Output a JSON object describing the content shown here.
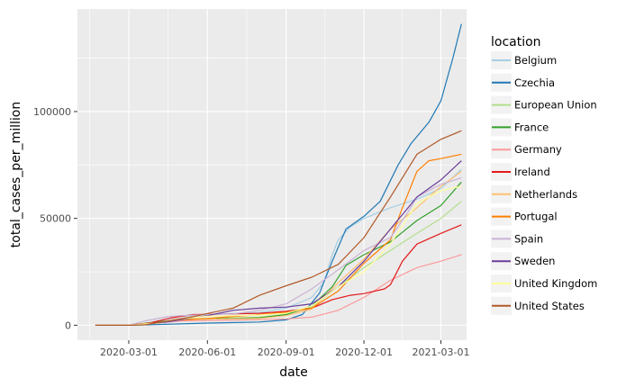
{
  "chart_data": {
    "type": "line",
    "xlabel": "date",
    "ylabel": "total_cases_per_million",
    "x_ticks": [
      "2020-03-01",
      "2020-06-01",
      "2020-09-01",
      "2020-12-01",
      "2021-03-01"
    ],
    "y_ticks": [
      0,
      50000,
      100000
    ],
    "y_tick_labels": [
      "0",
      "50000",
      "100000"
    ],
    "xlim": [
      "2020-01-01",
      "2021-03-31"
    ],
    "ylim": [
      -7000,
      148000
    ],
    "grid": true,
    "legend_title": "location",
    "legend_position": "right",
    "series": [
      {
        "name": "Belgium",
        "color": "#a6cee3",
        "points": [
          [
            "2020-01-22",
            0
          ],
          [
            "2020-03-01",
            0
          ],
          [
            "2020-03-20",
            800
          ],
          [
            "2020-04-15",
            3000
          ],
          [
            "2020-05-01",
            4200
          ],
          [
            "2020-06-01",
            5000
          ],
          [
            "2020-08-01",
            6000
          ],
          [
            "2020-09-01",
            8000
          ],
          [
            "2020-10-01",
            13000
          ],
          [
            "2020-10-15",
            20000
          ],
          [
            "2020-10-25",
            33000
          ],
          [
            "2020-11-01",
            40000
          ],
          [
            "2020-11-15",
            46000
          ],
          [
            "2020-12-01",
            50000
          ],
          [
            "2021-01-01",
            55000
          ],
          [
            "2021-02-01",
            59000
          ],
          [
            "2021-03-01",
            64000
          ],
          [
            "2021-03-25",
            73000
          ]
        ]
      },
      {
        "name": "Czechia",
        "color": "#1f78b4",
        "points": [
          [
            "2020-01-22",
            0
          ],
          [
            "2020-03-01",
            0
          ],
          [
            "2020-04-01",
            300
          ],
          [
            "2020-06-01",
            1000
          ],
          [
            "2020-08-01",
            1500
          ],
          [
            "2020-09-01",
            2500
          ],
          [
            "2020-09-20",
            5000
          ],
          [
            "2020-10-10",
            15000
          ],
          [
            "2020-10-25",
            30000
          ],
          [
            "2020-11-10",
            45000
          ],
          [
            "2020-12-01",
            51000
          ],
          [
            "2020-12-20",
            58000
          ],
          [
            "2021-01-10",
            75000
          ],
          [
            "2021-01-25",
            85000
          ],
          [
            "2021-02-15",
            95000
          ],
          [
            "2021-03-01",
            105000
          ],
          [
            "2021-03-15",
            125000
          ],
          [
            "2021-03-25",
            141000
          ]
        ]
      },
      {
        "name": "European Union",
        "color": "#b2df8a",
        "points": [
          [
            "2020-01-22",
            0
          ],
          [
            "2020-03-01",
            0
          ],
          [
            "2020-04-01",
            1000
          ],
          [
            "2020-05-01",
            2500
          ],
          [
            "2020-06-01",
            3000
          ],
          [
            "2020-08-01",
            3800
          ],
          [
            "2020-09-01",
            5000
          ],
          [
            "2020-10-01",
            8500
          ],
          [
            "2020-11-01",
            18000
          ],
          [
            "2020-12-01",
            27000
          ],
          [
            "2021-01-01",
            35000
          ],
          [
            "2021-02-01",
            43000
          ],
          [
            "2021-03-01",
            50000
          ],
          [
            "2021-03-25",
            58000
          ]
        ]
      },
      {
        "name": "France",
        "color": "#33a02c",
        "points": [
          [
            "2020-01-22",
            0
          ],
          [
            "2020-03-01",
            0
          ],
          [
            "2020-04-01",
            1500
          ],
          [
            "2020-05-01",
            2700
          ],
          [
            "2020-06-01",
            2900
          ],
          [
            "2020-08-01",
            3500
          ],
          [
            "2020-09-01",
            5000
          ],
          [
            "2020-10-01",
            9000
          ],
          [
            "2020-10-25",
            18000
          ],
          [
            "2020-11-10",
            28000
          ],
          [
            "2020-12-01",
            33000
          ],
          [
            "2021-01-01",
            39000
          ],
          [
            "2021-02-01",
            49000
          ],
          [
            "2021-03-01",
            56000
          ],
          [
            "2021-03-25",
            67000
          ]
        ]
      },
      {
        "name": "Germany",
        "color": "#fb9a99",
        "points": [
          [
            "2020-01-22",
            0
          ],
          [
            "2020-03-01",
            0
          ],
          [
            "2020-04-01",
            1000
          ],
          [
            "2020-05-01",
            2000
          ],
          [
            "2020-06-01",
            2200
          ],
          [
            "2020-08-01",
            2600
          ],
          [
            "2020-09-01",
            3000
          ],
          [
            "2020-10-01",
            3800
          ],
          [
            "2020-11-01",
            7000
          ],
          [
            "2020-12-01",
            13000
          ],
          [
            "2021-01-01",
            21000
          ],
          [
            "2021-02-01",
            27000
          ],
          [
            "2021-03-01",
            30000
          ],
          [
            "2021-03-25",
            33000
          ]
        ]
      },
      {
        "name": "Ireland",
        "color": "#e31a1c",
        "points": [
          [
            "2020-01-22",
            0
          ],
          [
            "2020-03-01",
            0
          ],
          [
            "2020-03-25",
            1000
          ],
          [
            "2020-04-20",
            3500
          ],
          [
            "2020-05-15",
            5000
          ],
          [
            "2020-06-01",
            5100
          ],
          [
            "2020-08-01",
            5600
          ],
          [
            "2020-09-01",
            6500
          ],
          [
            "2020-10-01",
            8000
          ],
          [
            "2020-10-25",
            12000
          ],
          [
            "2020-11-15",
            14000
          ],
          [
            "2020-12-01",
            14800
          ],
          [
            "2020-12-25",
            17000
          ],
          [
            "2021-01-01",
            19000
          ],
          [
            "2021-01-15",
            30000
          ],
          [
            "2021-02-01",
            38000
          ],
          [
            "2021-03-01",
            43000
          ],
          [
            "2021-03-25",
            47000
          ]
        ]
      },
      {
        "name": "Netherlands",
        "color": "#fdbf6f",
        "points": [
          [
            "2020-01-22",
            0
          ],
          [
            "2020-03-01",
            0
          ],
          [
            "2020-04-01",
            1000
          ],
          [
            "2020-05-01",
            2500
          ],
          [
            "2020-06-01",
            2800
          ],
          [
            "2020-08-01",
            3200
          ],
          [
            "2020-09-01",
            4500
          ],
          [
            "2020-10-01",
            7500
          ],
          [
            "2020-11-01",
            20000
          ],
          [
            "2020-12-01",
            31000
          ],
          [
            "2021-01-01",
            45000
          ],
          [
            "2021-02-01",
            55000
          ],
          [
            "2021-03-01",
            65000
          ],
          [
            "2021-03-25",
            72000
          ]
        ]
      },
      {
        "name": "Portugal",
        "color": "#ff7f00",
        "points": [
          [
            "2020-01-22",
            0
          ],
          [
            "2020-03-01",
            0
          ],
          [
            "2020-04-01",
            1000
          ],
          [
            "2020-05-01",
            2500
          ],
          [
            "2020-06-01",
            3200
          ],
          [
            "2020-08-01",
            5000
          ],
          [
            "2020-09-01",
            6000
          ],
          [
            "2020-10-01",
            8000
          ],
          [
            "2020-11-01",
            16000
          ],
          [
            "2020-12-01",
            29000
          ],
          [
            "2021-01-01",
            40000
          ],
          [
            "2021-01-15",
            55000
          ],
          [
            "2021-02-01",
            72000
          ],
          [
            "2021-02-15",
            77000
          ],
          [
            "2021-03-01",
            78000
          ],
          [
            "2021-03-25",
            80000
          ]
        ]
      },
      {
        "name": "Spain",
        "color": "#cab2d6",
        "points": [
          [
            "2020-01-22",
            0
          ],
          [
            "2020-03-01",
            0
          ],
          [
            "2020-03-20",
            2000
          ],
          [
            "2020-04-15",
            4000
          ],
          [
            "2020-05-01",
            4500
          ],
          [
            "2020-06-01",
            5000
          ],
          [
            "2020-07-01",
            5300
          ],
          [
            "2020-08-01",
            7000
          ],
          [
            "2020-09-01",
            10000
          ],
          [
            "2020-10-01",
            17000
          ],
          [
            "2020-11-01",
            26000
          ],
          [
            "2020-12-01",
            35000
          ],
          [
            "2021-01-01",
            41000
          ],
          [
            "2021-01-20",
            52000
          ],
          [
            "2021-02-01",
            60000
          ],
          [
            "2021-03-01",
            66000
          ],
          [
            "2021-03-25",
            69000
          ]
        ]
      },
      {
        "name": "Sweden",
        "color": "#6a3d9a",
        "points": [
          [
            "2020-01-22",
            0
          ],
          [
            "2020-03-01",
            0
          ],
          [
            "2020-03-20",
            500
          ],
          [
            "2020-04-15",
            1500
          ],
          [
            "2020-05-15",
            3500
          ],
          [
            "2020-06-01",
            4500
          ],
          [
            "2020-07-01",
            7000
          ],
          [
            "2020-08-01",
            8000
          ],
          [
            "2020-09-01",
            8500
          ],
          [
            "2020-10-01",
            10000
          ],
          [
            "2020-11-01",
            18000
          ],
          [
            "2020-12-01",
            30000
          ],
          [
            "2021-01-01",
            45000
          ],
          [
            "2021-02-01",
            60000
          ],
          [
            "2021-03-01",
            68000
          ],
          [
            "2021-03-25",
            77000
          ]
        ]
      },
      {
        "name": "United Kingdom",
        "color": "#ffff99",
        "points": [
          [
            "2020-01-22",
            0
          ],
          [
            "2020-03-01",
            0
          ],
          [
            "2020-04-01",
            1000
          ],
          [
            "2020-05-01",
            3000
          ],
          [
            "2020-06-01",
            4200
          ],
          [
            "2020-08-01",
            4800
          ],
          [
            "2020-09-01",
            5600
          ],
          [
            "2020-10-01",
            9000
          ],
          [
            "2020-11-01",
            18000
          ],
          [
            "2020-12-01",
            25000
          ],
          [
            "2021-01-01",
            38000
          ],
          [
            "2021-02-01",
            57000
          ],
          [
            "2021-03-01",
            63000
          ],
          [
            "2021-03-25",
            65000
          ]
        ]
      },
      {
        "name": "United States",
        "color": "#b15928",
        "points": [
          [
            "2020-01-22",
            0
          ],
          [
            "2020-03-01",
            0
          ],
          [
            "2020-03-20",
            200
          ],
          [
            "2020-04-15",
            2000
          ],
          [
            "2020-05-15",
            4000
          ],
          [
            "2020-06-01",
            5500
          ],
          [
            "2020-07-01",
            8000
          ],
          [
            "2020-08-01",
            14000
          ],
          [
            "2020-09-01",
            18500
          ],
          [
            "2020-10-01",
            22500
          ],
          [
            "2020-11-01",
            28500
          ],
          [
            "2020-12-01",
            41000
          ],
          [
            "2021-01-01",
            60000
          ],
          [
            "2021-02-01",
            80000
          ],
          [
            "2021-03-01",
            87000
          ],
          [
            "2021-03-25",
            91000
          ]
        ]
      }
    ]
  }
}
